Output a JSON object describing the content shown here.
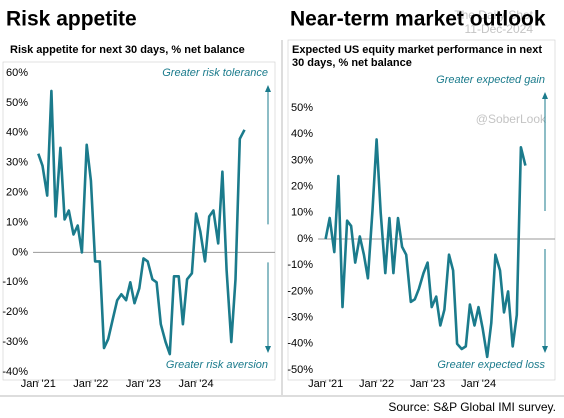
{
  "chart_data": [
    {
      "type": "line",
      "title": "Risk appetite",
      "subtitle": "Risk appetite for next 30 days, % net balance",
      "color": "#1b7b8c",
      "x": [
        2021,
        2021.08,
        2021.17,
        2021.25,
        2021.33,
        2021.42,
        2021.5,
        2021.58,
        2021.67,
        2021.75,
        2021.83,
        2021.92,
        2022,
        2022.08,
        2022.17,
        2022.25,
        2022.33,
        2022.42,
        2022.5,
        2022.58,
        2022.67,
        2022.75,
        2022.83,
        2022.92,
        2023,
        2023.08,
        2023.17,
        2023.25,
        2023.33,
        2023.42,
        2023.5,
        2023.58,
        2023.67,
        2023.75,
        2023.83,
        2023.92,
        2024,
        2024.08,
        2024.17,
        2024.25,
        2024.33,
        2024.42,
        2024.5,
        2024.58,
        2024.67,
        2024.75,
        2024.83,
        2024.92
      ],
      "values": [
        33,
        29,
        19,
        54,
        12,
        35,
        11,
        14,
        6,
        9,
        0,
        36,
        24,
        -3,
        -3,
        -32,
        -29,
        -22,
        -16,
        -14,
        -16,
        -10,
        -17,
        -12,
        -2,
        -3,
        -9,
        -10,
        -24,
        -30,
        -34,
        -8,
        -8,
        -24,
        -9,
        -7,
        13,
        7,
        -3,
        12,
        14,
        3,
        27,
        -6,
        -30,
        -9,
        38,
        41
      ],
      "xlim": [
        2020.9,
        2025.5
      ],
      "xticks": [
        {
          "value": 2021,
          "label": "Jan '21"
        },
        {
          "value": 2022,
          "label": "Jan '22"
        },
        {
          "value": 2023,
          "label": "Jan '23"
        },
        {
          "value": 2024,
          "label": "Jan '24"
        }
      ],
      "ylim": [
        -40,
        60
      ],
      "yticks": [
        {
          "value": -40,
          "label": "-40%"
        },
        {
          "value": -30,
          "label": "-30%"
        },
        {
          "value": -20,
          "label": "-20%"
        },
        {
          "value": -10,
          "label": "-10%"
        },
        {
          "value": 0,
          "label": "0%"
        },
        {
          "value": 10,
          "label": "10%"
        },
        {
          "value": 20,
          "label": "20%"
        },
        {
          "value": 30,
          "label": "30%"
        },
        {
          "value": 40,
          "label": "40%"
        },
        {
          "value": 50,
          "label": "50%"
        },
        {
          "value": 60,
          "label": "60%"
        }
      ],
      "annotations": [
        "Greater risk tolerance",
        "Greater risk aversion"
      ]
    },
    {
      "type": "line",
      "title": "Near-term market outlook",
      "subtitle": "Expected US equity market performance in next 30 days, % net balance",
      "color": "#1b7b8c",
      "x": [
        2021,
        2021.08,
        2021.17,
        2021.25,
        2021.33,
        2021.42,
        2021.5,
        2021.58,
        2021.67,
        2021.75,
        2021.83,
        2021.92,
        2022,
        2022.08,
        2022.17,
        2022.25,
        2022.33,
        2022.42,
        2022.5,
        2022.58,
        2022.67,
        2022.75,
        2022.83,
        2022.92,
        2023,
        2023.08,
        2023.17,
        2023.25,
        2023.33,
        2023.42,
        2023.5,
        2023.58,
        2023.67,
        2023.75,
        2023.83,
        2023.92,
        2024,
        2024.08,
        2024.17,
        2024.25,
        2024.33,
        2024.42,
        2024.5,
        2024.58,
        2024.67,
        2024.75,
        2024.83,
        2024.92
      ],
      "values": [
        0,
        8,
        -5,
        24,
        -26,
        7,
        5,
        -9,
        1,
        -6,
        -15,
        11,
        38,
        10,
        -13,
        8,
        -13,
        8,
        -3,
        -6,
        -24,
        -23,
        -19,
        -13,
        -9,
        -26,
        -22,
        -33,
        -27,
        -6,
        -12,
        -40,
        -42,
        -41,
        -25,
        -33,
        -26,
        -34,
        -45,
        -32,
        -6,
        -12,
        -28,
        -20,
        -41,
        -29,
        35,
        28
      ],
      "xlim": [
        2020.85,
        2025.5
      ],
      "xticks": [
        {
          "value": 2021,
          "label": "Jan '21"
        },
        {
          "value": 2022,
          "label": "Jan '22"
        },
        {
          "value": 2023,
          "label": "Jan '23"
        },
        {
          "value": 2024,
          "label": "Jan '24"
        }
      ],
      "ylim": [
        -50,
        50
      ],
      "yticks": [
        {
          "value": -50,
          "label": "-50%"
        },
        {
          "value": -40,
          "label": "-40%"
        },
        {
          "value": -30,
          "label": "-30%"
        },
        {
          "value": -20,
          "label": "-20%"
        },
        {
          "value": -10,
          "label": "-10%"
        },
        {
          "value": 0,
          "label": "0%"
        },
        {
          "value": 10,
          "label": "10%"
        },
        {
          "value": 20,
          "label": "20%"
        },
        {
          "value": 30,
          "label": "30%"
        },
        {
          "value": 40,
          "label": "40%"
        },
        {
          "value": 50,
          "label": "50%"
        }
      ],
      "annotations": [
        "Greater expected gain",
        "Greater  expected loss"
      ]
    }
  ],
  "watermark": [
    "The Daily Shot",
    "11-Dec-2024",
    "@SoberLook"
  ],
  "source": "Source: S&P Global IMI survey."
}
